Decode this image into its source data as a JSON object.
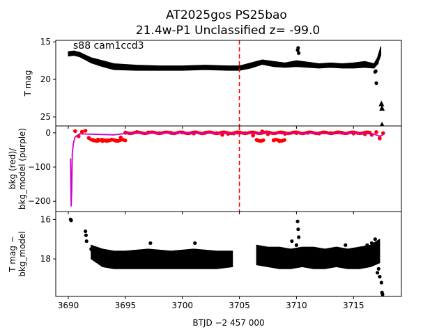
{
  "title_line1": "AT2025gos  PS25bao",
  "title_line2": "21.4w-P1 Unclassified z= -99.0",
  "colors": {
    "data": "#000000",
    "bkg": "#ff0000",
    "model": "#cc00cc",
    "marker": "#ff0000"
  },
  "chart_data": [
    {
      "type": "scatter",
      "panel": "top",
      "annotation": "s88 cam1ccd3",
      "ylabel": "T mag",
      "y_inverted": true,
      "ylim": [
        26.2,
        14.8
      ],
      "yticks": [
        "15",
        "20",
        "25"
      ],
      "xlim": [
        3688.9,
        3719.2
      ],
      "vline_x": 3705.0,
      "series": [
        {
          "kind": "band",
          "x": [
            3690.0,
            3690.5,
            3691.0,
            3692.0,
            3693.0,
            3694.0,
            3696.0,
            3698.0,
            3700.0,
            3702.0,
            3704.0,
            3705.0,
            3706.0,
            3707.0,
            3708.0,
            3709.0,
            3710.0,
            3711.0,
            3712.0,
            3713.0,
            3714.0,
            3715.0,
            3716.0,
            3716.8,
            3717.1,
            3717.4
          ],
          "y1": [
            16.9,
            16.8,
            17.0,
            17.8,
            18.3,
            18.7,
            18.8,
            18.8,
            18.8,
            18.7,
            18.8,
            18.8,
            18.5,
            18.0,
            18.3,
            18.4,
            18.3,
            18.4,
            18.5,
            18.4,
            18.5,
            18.5,
            18.4,
            18.5,
            18.0,
            16.8
          ],
          "y2": [
            16.3,
            16.2,
            16.4,
            17.1,
            17.5,
            17.9,
            18.1,
            18.2,
            18.2,
            18.1,
            18.2,
            18.2,
            17.8,
            17.4,
            17.6,
            17.8,
            17.5,
            17.7,
            17.9,
            17.8,
            17.9,
            17.8,
            17.6,
            17.9,
            17.1,
            15.6
          ]
        },
        {
          "kind": "points",
          "x": [
            3710.1,
            3710.15,
            3710.2,
            3716.9,
            3717.0,
            3717.05,
            3716.95
          ],
          "y": [
            16.1,
            15.8,
            16.5,
            19.0,
            20.5,
            17.8,
            18.9
          ]
        },
        {
          "kind": "triangles",
          "x": [
            3717.45,
            3717.5,
            3717.5
          ],
          "y": [
            23.2,
            23.8,
            26.0
          ]
        }
      ]
    },
    {
      "type": "line",
      "panel": "middle",
      "ylabel": "bkg (red)/\nbkg_model (purple)",
      "ylim": [
        -230,
        20
      ],
      "yticks": [
        "0",
        "−100",
        "−200"
      ],
      "ytick_values": [
        0,
        -100,
        -200
      ],
      "xlim": [
        3688.9,
        3719.2
      ],
      "vline_x": 3705.0,
      "bkg": {
        "x": [
          3690.6,
          3690.9,
          3691.2,
          3691.5,
          3691.8,
          3692.2,
          3692.6,
          3693.0,
          3693.4,
          3693.8,
          3694.2,
          3694.6,
          3695.0,
          3696.0,
          3697.0,
          3698.0,
          3699.0,
          3700.0,
          3701.0,
          3702.0,
          3703.0,
          3703.5,
          3704.0,
          3704.5,
          3705.5,
          3706.2,
          3706.6,
          3707.0,
          3707.5,
          3708.0,
          3708.5,
          3709.0,
          3710.0,
          3711.0,
          3712.0,
          3713.0,
          3714.0,
          3715.0,
          3716.0,
          3716.6,
          3717.0,
          3717.3,
          3717.6
        ],
        "y": [
          5,
          -10,
          3,
          6,
          -15,
          -22,
          -20,
          -24,
          -22,
          -20,
          -23,
          -14,
          0,
          2,
          1,
          -1,
          0,
          1,
          -2,
          0,
          -1,
          -6,
          -3,
          -2,
          -1,
          -8,
          -22,
          4,
          -4,
          -22,
          -24,
          -3,
          -1,
          0,
          -2,
          -1,
          0,
          -2,
          -4,
          -6,
          2,
          -16,
          -1
        ]
      },
      "bkg_model": {
        "x": [
          3690.2,
          3690.25,
          3690.3,
          3690.35,
          3690.45,
          3690.6,
          3691.0,
          3692.0,
          3693.0,
          3694.0,
          3695.0,
          3696.0,
          3698.0,
          3700.0,
          3702.0,
          3704.0,
          3705.0,
          3706.0,
          3707.0,
          3708.0,
          3709.0,
          3710.0,
          3711.0,
          3712.0,
          3713.0,
          3714.0,
          3715.0,
          3716.0,
          3716.8,
          3717.3,
          3717.6
        ],
        "y": [
          -75,
          -215,
          -170,
          -60,
          -30,
          -12,
          -3,
          -4,
          -5,
          -6,
          -2,
          -1,
          -1,
          0,
          -1,
          -2,
          -3,
          -2,
          -1,
          -2,
          -3,
          -2,
          -1,
          -2,
          -3,
          -2,
          -1,
          -2,
          -4,
          -10,
          -6
        ]
      }
    },
    {
      "type": "scatter",
      "panel": "bottom",
      "ylabel": "T mag −\nbkg_model",
      "y_inverted": true,
      "ylim": [
        19.9,
        15.6
      ],
      "yticks": [
        "16",
        "18"
      ],
      "ytick_values": [
        16,
        18
      ],
      "xlim": [
        3688.9,
        3719.2
      ],
      "xlabel": "BTJD −2 457 000",
      "xticks": [
        "3690",
        "3695",
        "3700",
        "3705",
        "3710",
        "3715"
      ],
      "xtick_values": [
        3690,
        3695,
        3700,
        3705,
        3710,
        3715
      ],
      "series": [
        {
          "kind": "band",
          "x": [
            3692.0,
            3692.5,
            3693.0,
            3694.0,
            3695.0,
            3697.0,
            3699.0,
            3701.0,
            3703.0,
            3704.4
          ],
          "y1": [
            18.0,
            18.2,
            18.4,
            18.5,
            18.5,
            18.5,
            18.5,
            18.5,
            18.5,
            18.4
          ],
          "y2": [
            17.3,
            17.4,
            17.5,
            17.6,
            17.6,
            17.5,
            17.6,
            17.5,
            17.6,
            17.6
          ]
        },
        {
          "kind": "band",
          "x": [
            3706.5,
            3707.5,
            3708.5,
            3709.5,
            3710.5,
            3711.5,
            3712.5,
            3713.5,
            3714.5,
            3715.5,
            3716.5,
            3717.3
          ],
          "y1": [
            18.3,
            18.4,
            18.5,
            18.5,
            18.4,
            18.5,
            18.5,
            18.4,
            18.5,
            18.5,
            18.4,
            18.2
          ],
          "y2": [
            17.3,
            17.4,
            17.4,
            17.5,
            17.4,
            17.4,
            17.5,
            17.4,
            17.5,
            17.4,
            17.3,
            17.0
          ]
        },
        {
          "kind": "points",
          "x": [
            3690.2,
            3690.25,
            3691.5,
            3691.55,
            3691.6,
            3692.0,
            3692.1,
            3697.2,
            3701.1,
            3709.6,
            3710.0,
            3710.1,
            3710.15,
            3710.2,
            3714.3,
            3716.2,
            3716.6,
            3716.9,
            3717.1,
            3717.2,
            3717.3,
            3717.45,
            3717.5,
            3717.55
          ],
          "y": [
            16.0,
            16.05,
            16.6,
            16.8,
            17.1,
            17.5,
            17.6,
            17.2,
            17.2,
            17.1,
            17.3,
            16.1,
            16.5,
            16.9,
            17.3,
            17.3,
            17.2,
            17.0,
            18.7,
            18.5,
            18.9,
            19.2,
            19.7,
            19.8
          ]
        }
      ]
    }
  ]
}
